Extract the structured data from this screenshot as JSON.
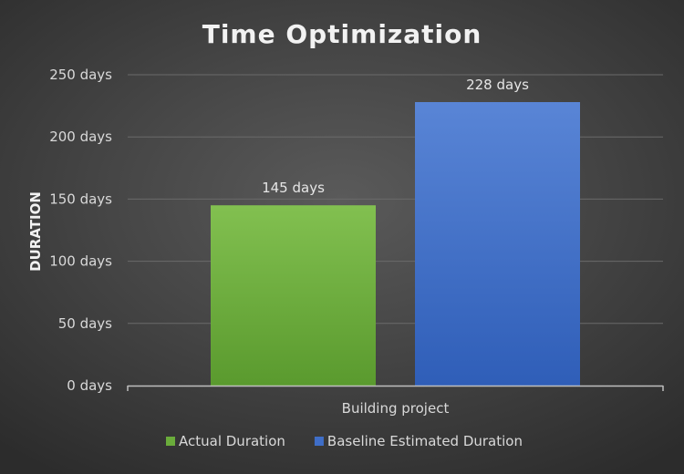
{
  "chart_data": {
    "type": "bar",
    "title": "Time Optimization",
    "ylabel": "DURATION",
    "xlabel": "",
    "unit_suffix": " days",
    "categories": [
      "Building project"
    ],
    "ylim": [
      0,
      250
    ],
    "ytick_step": 50,
    "yticks": [
      "0 days",
      "50 days",
      "100 days",
      "150 days",
      "200 days",
      "250 days"
    ],
    "grid": true,
    "legend": "bottom",
    "series": [
      {
        "name": "Actual Duration",
        "values": [
          145
        ],
        "labels": [
          "145 days"
        ],
        "color": "#6aac3b",
        "color_light": "#82c050",
        "color_dark": "#5a9a2e"
      },
      {
        "name": "Baseline Estimated Duration",
        "values": [
          228
        ],
        "labels": [
          "228 days"
        ],
        "color": "#3f6ec8",
        "color_light": "#5985d6",
        "color_dark": "#2f5eb8"
      }
    ]
  }
}
